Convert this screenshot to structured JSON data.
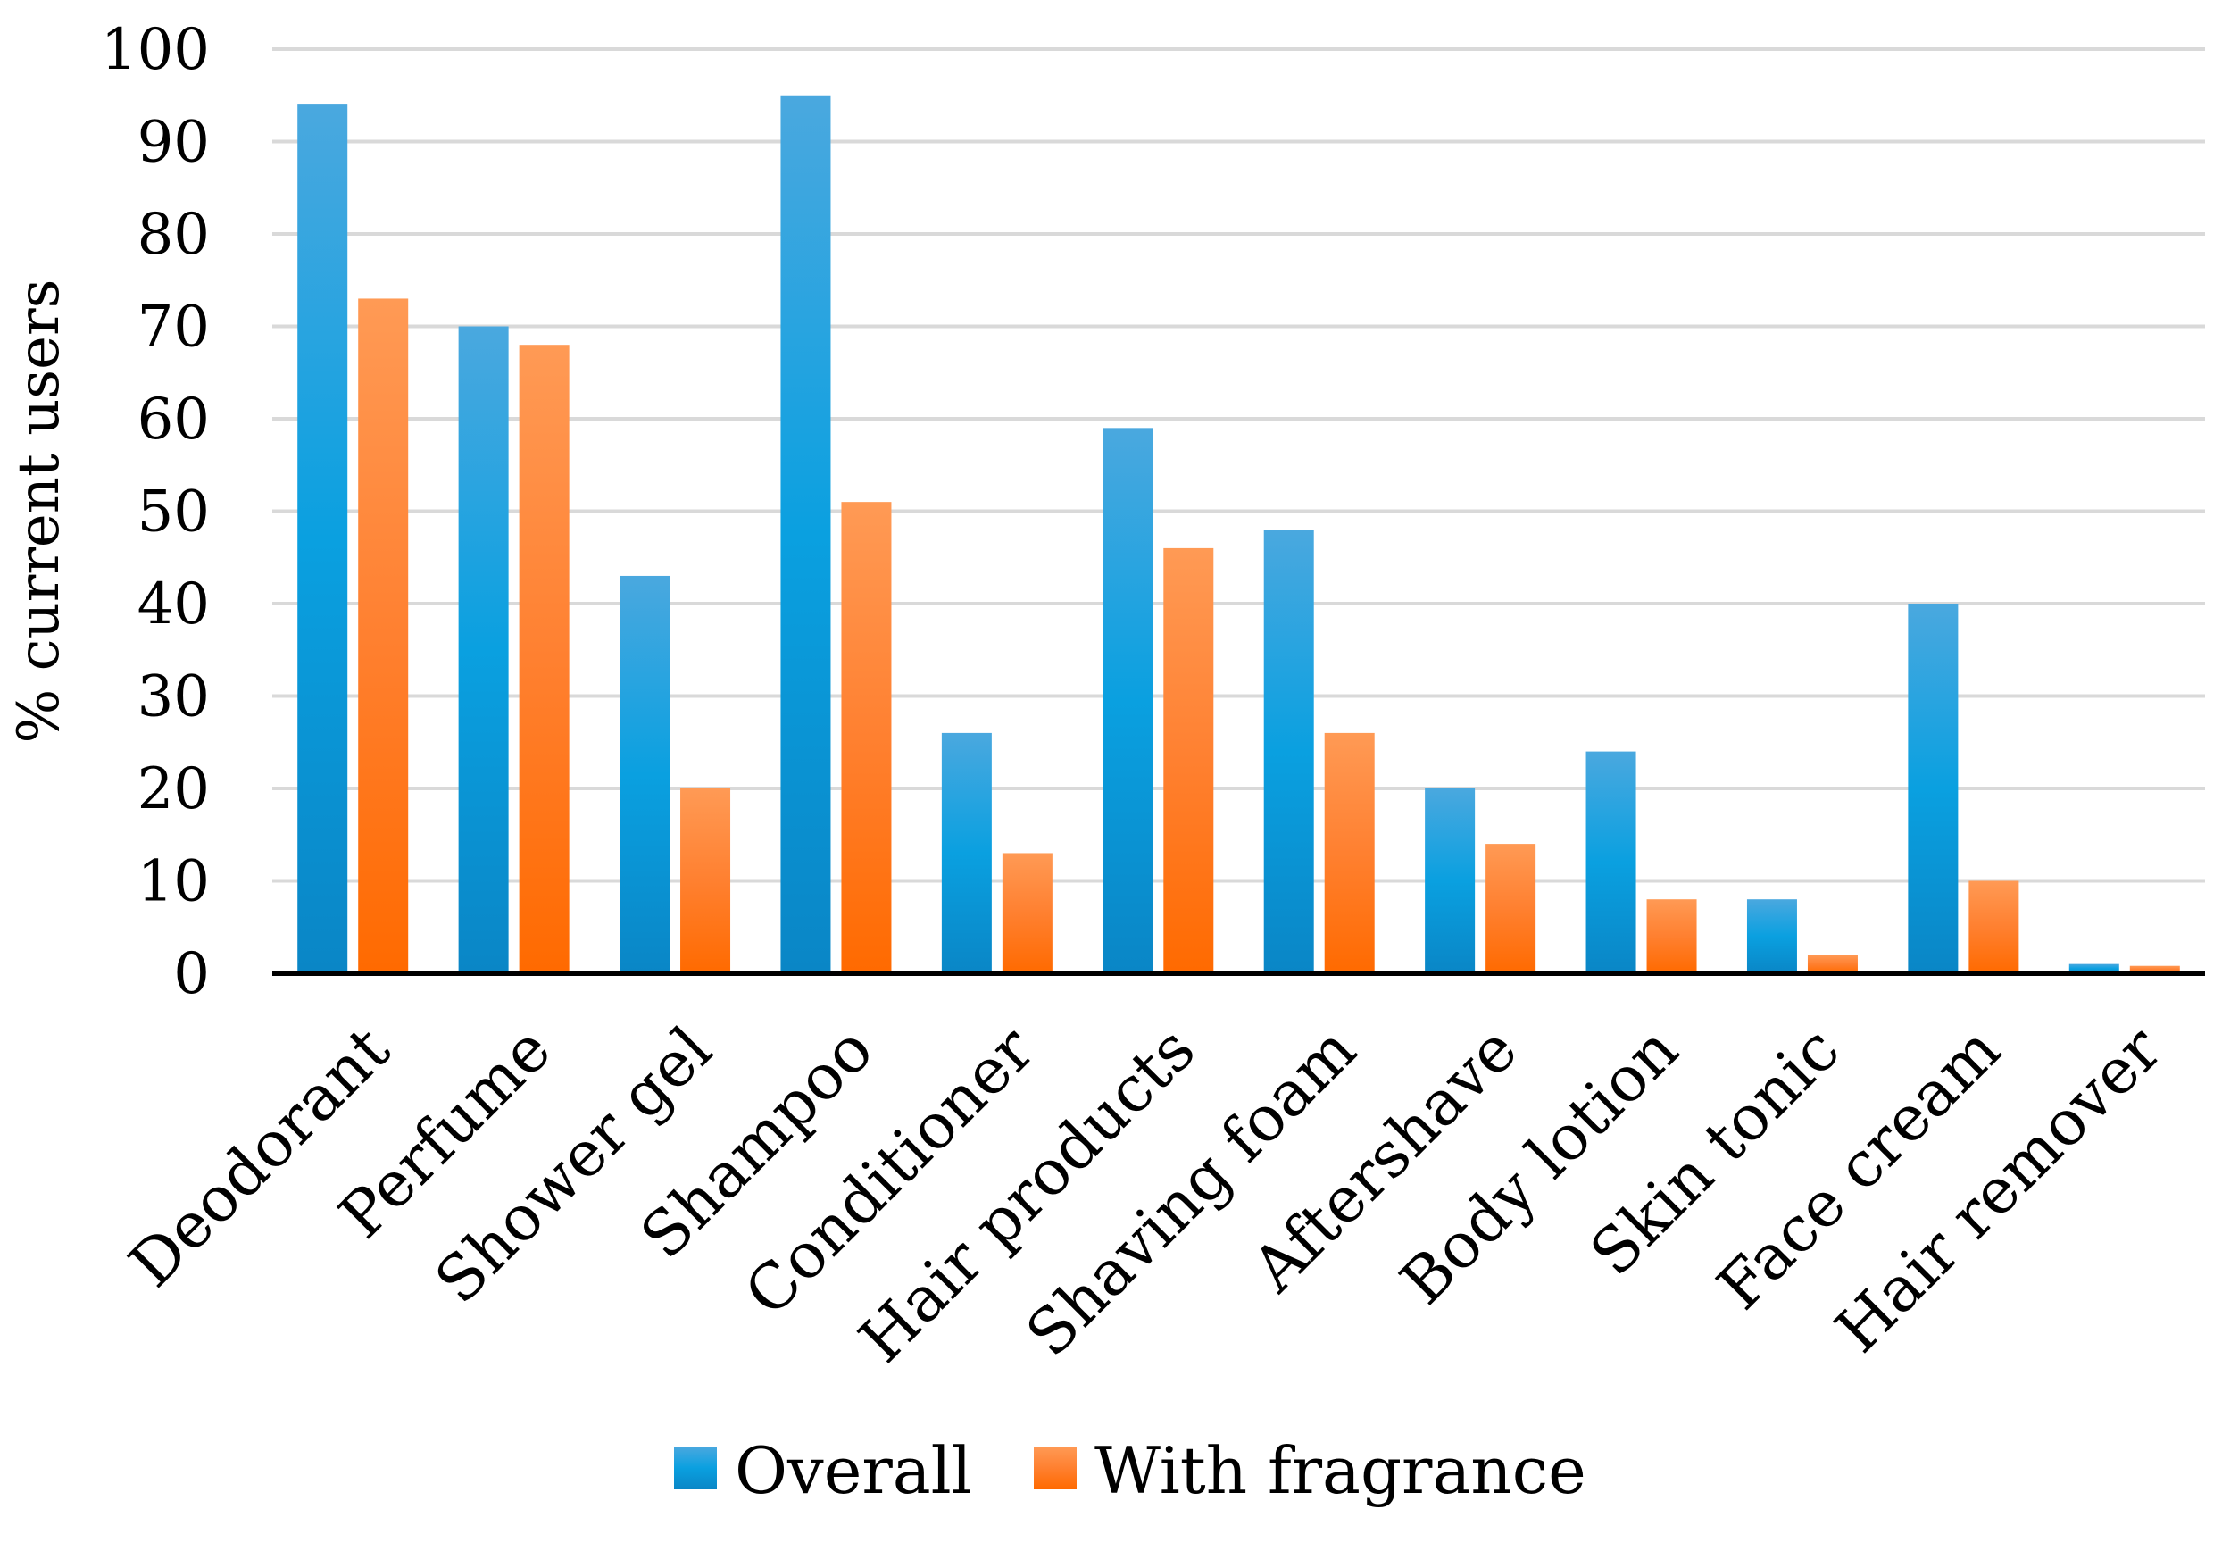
{
  "chart_data": {
    "type": "bar",
    "title": "",
    "xlabel": "",
    "ylabel": "% current users",
    "ylim": [
      0,
      100
    ],
    "yticks": [
      0,
      10,
      20,
      30,
      40,
      50,
      60,
      70,
      80,
      90,
      100
    ],
    "grid": true,
    "legend_position": "bottom",
    "categories": [
      "Deodorant",
      "Perfume",
      "Shower gel",
      "Shampoo",
      "Conditioner",
      "Hair products",
      "Shaving foam",
      "Aftershave",
      "Body lotion",
      "Skin tonic",
      "Face cream",
      "Hair remover"
    ],
    "series": [
      {
        "name": "Overall",
        "color": "#1a9ad6",
        "values": [
          94,
          70,
          43,
          95,
          26,
          59,
          48,
          20,
          24,
          8,
          40,
          1
        ]
      },
      {
        "name": "With fragrance",
        "color": "#ff7a22",
        "values": [
          73,
          68,
          20,
          51,
          13,
          46,
          26,
          14,
          8,
          2,
          10,
          0.8
        ]
      }
    ]
  }
}
